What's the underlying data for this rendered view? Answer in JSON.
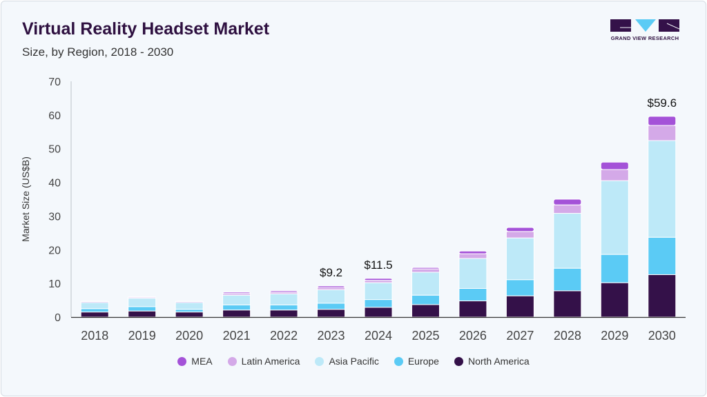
{
  "header": {
    "title": "Virtual Reality Headset Market",
    "subtitle": "Size, by Region, 2018 - 2030",
    "logo_text": "GRAND VIEW RESEARCH"
  },
  "chart_data": {
    "type": "bar",
    "stacked": true,
    "title": "Virtual Reality Headset Market",
    "subtitle": "Size, by Region, 2018 - 2030",
    "xlabel": "",
    "ylabel": "Market Size (US$B)",
    "ylim": [
      0,
      70
    ],
    "yticks": [
      0,
      10,
      20,
      30,
      40,
      50,
      60,
      70
    ],
    "grid": false,
    "legend_position": "bottom",
    "categories": [
      "2018",
      "2019",
      "2020",
      "2021",
      "2022",
      "2023",
      "2024",
      "2025",
      "2026",
      "2027",
      "2028",
      "2029",
      "2030"
    ],
    "series": [
      {
        "name": "North America",
        "color": "#341149",
        "values": [
          1.5,
          1.8,
          1.5,
          2.1,
          2.1,
          2.3,
          2.9,
          3.7,
          4.8,
          6.3,
          7.8,
          10.2,
          12.6
        ]
      },
      {
        "name": "Europe",
        "color": "#5bcbf5",
        "values": [
          1.0,
          1.3,
          0.8,
          1.5,
          1.5,
          1.8,
          2.3,
          2.8,
          3.7,
          4.8,
          6.7,
          8.4,
          11.1
        ]
      },
      {
        "name": "Asia Pacific",
        "color": "#bde9f8",
        "values": [
          1.8,
          2.5,
          2.0,
          2.9,
          3.3,
          4.0,
          5.0,
          6.8,
          8.9,
          12.4,
          16.3,
          21.9,
          28.7
        ]
      },
      {
        "name": "Latin America",
        "color": "#d4a9e8",
        "values": [
          0.3,
          0.3,
          0.3,
          0.5,
          0.5,
          0.6,
          0.7,
          1.0,
          1.4,
          1.9,
          2.5,
          3.3,
          4.5
        ]
      },
      {
        "name": "MEA",
        "color": "#a452d8",
        "values": [
          0.1,
          0.1,
          0.1,
          0.4,
          0.4,
          0.5,
          0.6,
          0.4,
          0.8,
          1.2,
          1.7,
          2.2,
          2.7
        ]
      }
    ],
    "annotations": [
      {
        "category": "2023",
        "text": "$9.2"
      },
      {
        "category": "2024",
        "text": "$11.5"
      },
      {
        "category": "2030",
        "text": "$59.6"
      }
    ],
    "legend_order": [
      "MEA",
      "Latin America",
      "Asia Pacific",
      "Europe",
      "North America"
    ]
  }
}
